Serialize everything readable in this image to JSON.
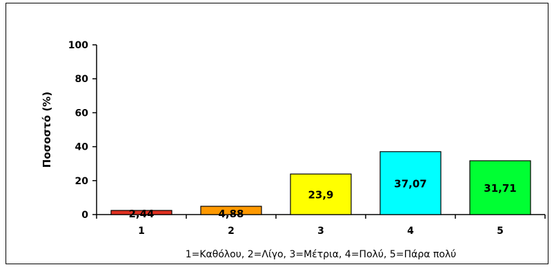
{
  "chart_data": {
    "type": "bar",
    "categories": [
      "1",
      "2",
      "3",
      "4",
      "5"
    ],
    "values": [
      2.44,
      4.88,
      23.9,
      37.07,
      31.71
    ],
    "value_labels": [
      "2,44",
      "4,88",
      "23,9",
      "37,07",
      "31,71"
    ],
    "colors": [
      "#e03020",
      "#ff9900",
      "#ffff00",
      "#00ffff",
      "#00ff33"
    ],
    "ylabel": "Ποσοστό (%)",
    "xlabel": "1=Καθόλου, 2=Λίγο, 3=Μέτρια, 4=Πολύ, 5=Πάρα πολύ",
    "ylim": [
      0,
      100
    ],
    "yticks": [
      0,
      20,
      40,
      60,
      80,
      100
    ],
    "grid": false,
    "legend": "none"
  }
}
